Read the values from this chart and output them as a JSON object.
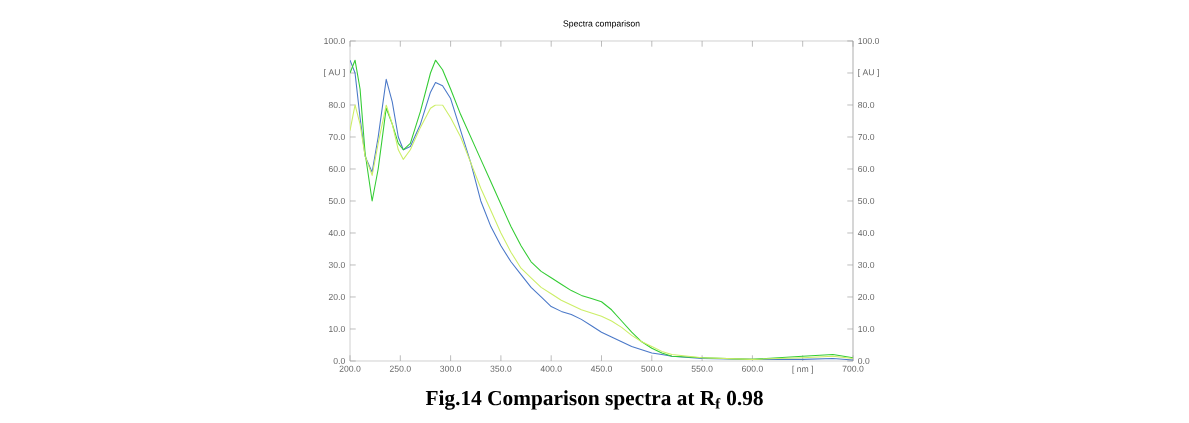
{
  "chart_data": {
    "type": "line",
    "title": "Spectra comparison",
    "annotations": [
      "**Fig.14 Comparison spectra at  R$_{f}$  0.98**"
    ],
    "x": [
      200,
      205,
      210,
      215,
      222,
      228,
      236,
      242,
      248,
      253,
      260,
      270,
      280,
      285,
      292,
      300,
      310,
      320,
      330,
      340,
      350,
      360,
      370,
      380,
      390,
      400,
      410,
      420,
      430,
      440,
      450,
      460,
      470,
      480,
      490,
      500,
      510,
      520,
      550,
      600,
      650,
      680,
      700
    ],
    "series": [
      {
        "color": "#4a78c8",
        "values": [
          94,
          90,
          76,
          64,
          59,
          70,
          88,
          81,
          70,
          66,
          67,
          74,
          84,
          87,
          86,
          82,
          72,
          62,
          50,
          42,
          36,
          31,
          27,
          23,
          20,
          17,
          15.5,
          14.5,
          13,
          11,
          9,
          7.5,
          6,
          4.5,
          3.5,
          2.5,
          2,
          1.5,
          0.8,
          0.5,
          0.5,
          0.8,
          0.3
        ]
      },
      {
        "color": "#33cc33",
        "values": [
          90,
          94,
          85,
          65,
          50,
          60,
          79,
          74,
          68,
          66,
          68,
          78,
          90,
          94,
          91,
          85,
          77,
          70,
          63,
          56,
          49,
          42,
          36,
          31,
          28,
          26,
          24,
          22,
          20.5,
          19.5,
          18.5,
          16,
          12.5,
          9,
          6,
          4,
          2.5,
          1.5,
          1,
          0.5,
          1.5,
          2,
          1
        ]
      },
      {
        "color": "#ccee66",
        "values": [
          72,
          80,
          74,
          64,
          58,
          68,
          80,
          74,
          66,
          63,
          66,
          73,
          79,
          80,
          80,
          76,
          70,
          62,
          54,
          47,
          40,
          34,
          29,
          26,
          23,
          21,
          19,
          17.5,
          16,
          15,
          14,
          12.5,
          10.5,
          8,
          6,
          4.5,
          3,
          2,
          1,
          0.5,
          1,
          1.5,
          0.8
        ]
      }
    ],
    "xlim": [
      200,
      700
    ],
    "xticks": [
      {
        "value": 200,
        "label": "200.0"
      },
      {
        "value": 250,
        "label": "250.0"
      },
      {
        "value": 300,
        "label": "300.0"
      },
      {
        "value": 350,
        "label": "350.0"
      },
      {
        "value": 400,
        "label": "400.0"
      },
      {
        "value": 450,
        "label": "450.0"
      },
      {
        "value": 500,
        "label": "500.0"
      },
      {
        "value": 550,
        "label": "550.0"
      },
      {
        "value": 600,
        "label": "600.0"
      },
      {
        "value": 650,
        "label": "[ nm ]"
      },
      {
        "value": 700,
        "label": "700.0"
      }
    ],
    "ylim": [
      0,
      100
    ],
    "yticks": [
      {
        "value": 0,
        "label": "0.0"
      },
      {
        "value": 10,
        "label": "10.0"
      },
      {
        "value": 20,
        "label": "20.0"
      },
      {
        "value": 30,
        "label": "30.0"
      },
      {
        "value": 40,
        "label": "40.0"
      },
      {
        "value": 50,
        "label": "50.0"
      },
      {
        "value": 60,
        "label": "60.0"
      },
      {
        "value": 70,
        "label": "70.0"
      },
      {
        "value": 80,
        "label": "80.0"
      },
      {
        "value": 90,
        "label": "[ AU ]"
      },
      {
        "value": 100,
        "label": "100.0"
      }
    ],
    "y2lim": [
      0,
      100
    ],
    "y2ticks": [
      {
        "value": 0,
        "label": "0.0"
      },
      {
        "value": 10,
        "label": "10.0"
      },
      {
        "value": 20,
        "label": "20.0"
      },
      {
        "value": 30,
        "label": "30.0"
      },
      {
        "value": 40,
        "label": "40.0"
      },
      {
        "value": 50,
        "label": "50.0"
      },
      {
        "value": 60,
        "label": "60.0"
      },
      {
        "value": 70,
        "label": "70.0"
      },
      {
        "value": 80,
        "label": "80.0"
      },
      {
        "value": 90,
        "label": "[ AU ]"
      },
      {
        "value": 100,
        "label": "100.0"
      }
    ]
  }
}
